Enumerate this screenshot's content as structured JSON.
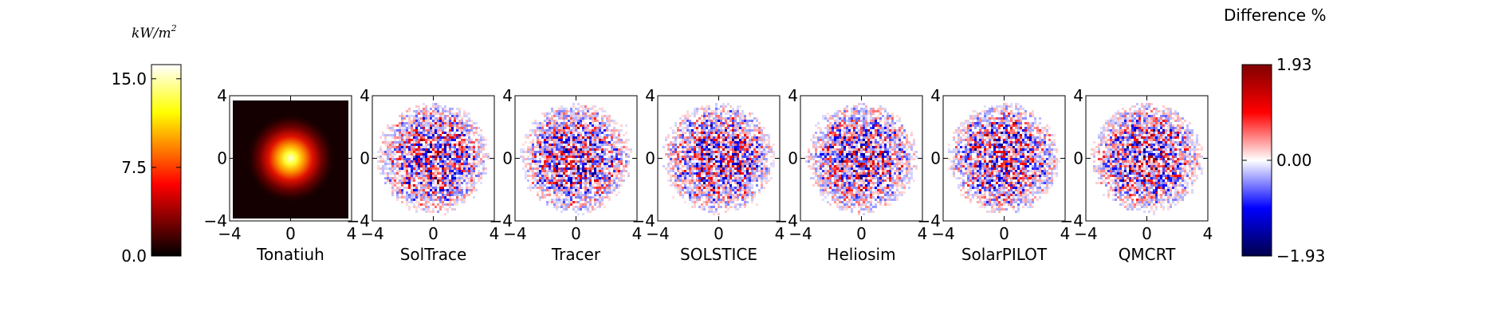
{
  "chart_data": {
    "type": "heatmap",
    "flux_colorbar": {
      "unit_label": "kW/m",
      "unit_exponent": "2",
      "ticks": [
        "15.0",
        "7.5",
        "0.0"
      ],
      "tick_values": [
        15.0,
        7.5,
        0.0
      ],
      "range": [
        0.0,
        16.2
      ],
      "colormap": "hot"
    },
    "difference_colorbar": {
      "label": "Difference %",
      "ticks": [
        "1.93",
        "0.00",
        "−1.93"
      ],
      "tick_values": [
        1.93,
        0.0,
        -1.93
      ],
      "range": [
        -1.93,
        1.93
      ],
      "colormap": "seismic"
    },
    "panels": [
      {
        "name": "Tonatiuh",
        "kind": "flux",
        "peak_kw_m2": 15.7
      },
      {
        "name": "SolTrace",
        "kind": "difference"
      },
      {
        "name": "Tracer",
        "kind": "difference"
      },
      {
        "name": "SOLSTICE",
        "kind": "difference"
      },
      {
        "name": "Heliosim",
        "kind": "difference"
      },
      {
        "name": "SolarPILOT",
        "kind": "difference"
      },
      {
        "name": "QMCRT",
        "kind": "difference"
      }
    ],
    "axes": {
      "xlim": [
        -4,
        4
      ],
      "ylim": [
        -4,
        4
      ],
      "xticks": [
        "−4",
        "0",
        "4"
      ],
      "yticks": [
        "4",
        "0",
        "−4"
      ],
      "xtick_values": [
        -4,
        0,
        4
      ],
      "ytick_values": [
        4,
        0,
        -4
      ]
    }
  }
}
